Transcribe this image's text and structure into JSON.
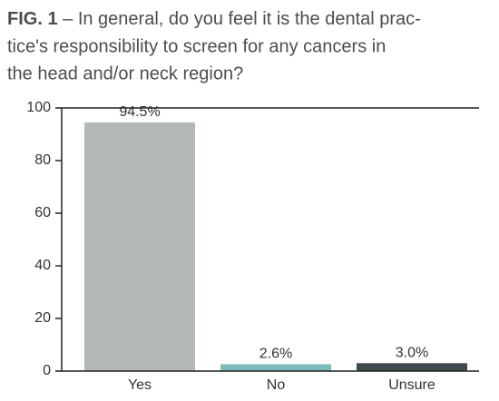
{
  "chart_data": {
    "type": "bar",
    "figure_label": "FIG. 1",
    "title_lines": [
      "– In general, do you feel it is the dental prac-",
      "tice's responsibility to screen for any cancers in",
      "the head and/or neck region?"
    ],
    "categories": [
      "Yes",
      "No",
      "Unsure"
    ],
    "values": [
      94.5,
      2.6,
      3.0
    ],
    "value_labels": [
      "94.5%",
      "2.6%",
      "3.0%"
    ],
    "colors": [
      "#b3b8b9",
      "#7cbcbd",
      "#3e4a4d"
    ],
    "ylim": [
      0,
      100
    ],
    "yticks": [
      0,
      20,
      40,
      60,
      80,
      100
    ]
  }
}
